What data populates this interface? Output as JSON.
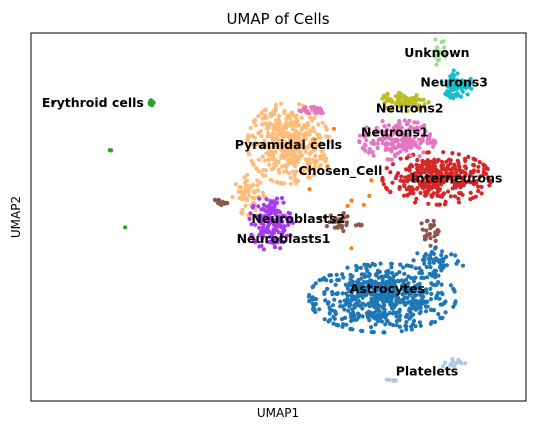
{
  "chart_data": {
    "type": "scatter",
    "title": "UMAP of Cells",
    "xlabel": "UMAP1",
    "ylabel": "UMAP2",
    "xlim": [
      0,
      100
    ],
    "ylim": [
      0,
      100
    ],
    "grid": false,
    "legend": "on data",
    "ticks": "hidden",
    "clusters": [
      {
        "name": "Astrocytes",
        "color": "#1f77b4",
        "label_at": [
          72,
          30.5
        ],
        "blobs": [
          {
            "center": [
              71,
              28
            ],
            "spread": [
              13.5,
              8.5
            ],
            "n": 620
          },
          {
            "center": [
              82,
              38
            ],
            "spread": [
              5,
              4
            ],
            "n": 60
          }
        ]
      },
      {
        "name": "Pyramidal cells",
        "color": "#ffbb78",
        "label_at": [
          52,
          69.5
        ],
        "blobs": [
          {
            "center": [
              52,
              70
            ],
            "spread": [
              7.5,
              10
            ],
            "n": 430
          },
          {
            "center": [
              44,
              56
            ],
            "spread": [
              3,
              5
            ],
            "n": 60
          }
        ]
      },
      {
        "name": "Interneurons",
        "color": "#d62728",
        "label_at": [
          86,
          60.5
        ],
        "blobs": [
          {
            "center": [
              82,
              60.5
            ],
            "spread": [
              10,
              6.5
            ],
            "n": 330
          }
        ]
      },
      {
        "name": "Neurons1",
        "color": "#e377c2",
        "label_at": [
          73.5,
          73
        ],
        "blobs": [
          {
            "center": [
              74,
              71
            ],
            "spread": [
              7,
              5
            ],
            "n": 190
          },
          {
            "center": [
              57,
              79
            ],
            "spread": [
              3,
              1.5
            ],
            "n": 25
          }
        ]
      },
      {
        "name": "Neurons2",
        "color": "#bcbd22",
        "label_at": [
          76.5,
          79.5
        ],
        "blobs": [
          {
            "center": [
              75.5,
              81.5
            ],
            "spread": [
              4.5,
              2.5
            ],
            "n": 90
          }
        ]
      },
      {
        "name": "Neurons3",
        "color": "#17becf",
        "label_at": [
          85.5,
          86.5
        ],
        "blobs": [
          {
            "center": [
              86,
              86
            ],
            "spread": [
              2.8,
              3.5
            ],
            "n": 80
          }
        ]
      },
      {
        "name": "Unknown",
        "color": "#98df8a",
        "label_at": [
          82,
          94.5
        ],
        "blobs": [
          {
            "center": [
              82.5,
              95
            ],
            "spread": [
              1.5,
              3.5
            ],
            "n": 15
          }
        ]
      },
      {
        "name": "Neuroblasts1",
        "color": "#a83bf2",
        "label_at": [
          51,
          44
        ],
        "blobs": [
          {
            "center": [
              48.5,
              48.5
            ],
            "spread": [
              4,
              7
            ],
            "n": 150
          }
        ]
      },
      {
        "name": "Neuroblasts2",
        "color": "#8c564b",
        "label_at": [
          54,
          49.5
        ],
        "blobs": [
          {
            "center": [
              62,
              48.5
            ],
            "spread": [
              4.5,
              2.5
            ],
            "n": 30
          },
          {
            "center": [
              80.5,
              46
            ],
            "spread": [
              1.8,
              3.5
            ],
            "n": 25
          },
          {
            "center": [
              38,
              54
            ],
            "spread": [
              1.6,
              0.7
            ],
            "n": 14
          }
        ]
      },
      {
        "name": "Chosen_Cell",
        "color": "#ff7f0e",
        "label_at": [
          62.5,
          62.5
        ],
        "blobs": [
          {
            "center": [
              64,
              58
            ],
            "spread": [
              10,
              15
            ],
            "n": 10
          }
        ]
      },
      {
        "name": "Erythroid cells",
        "color": "#2ca02c",
        "label_at": [
          12.5,
          81
        ],
        "blobs": [
          {
            "center": [
              24.5,
              81
            ],
            "spread": [
              0.5,
              0.8
            ],
            "n": 10
          },
          {
            "center": [
              16,
              68
            ],
            "spread": [
              0.3,
              0.3
            ],
            "n": 2
          },
          {
            "center": [
              19,
              47
            ],
            "spread": [
              0.2,
              0.2
            ],
            "n": 1
          },
          {
            "center": [
              4.5,
              81
            ],
            "spread": [
              0.2,
              0.2
            ],
            "n": 1
          }
        ]
      },
      {
        "name": "Platelets",
        "color": "#aec7e8",
        "label_at": [
          80,
          8
        ],
        "blobs": [
          {
            "center": [
              85,
              10.5
            ],
            "spread": [
              2.5,
              1.5
            ],
            "n": 14
          },
          {
            "center": [
              73,
              5.5
            ],
            "spread": [
              1.5,
              0.5
            ],
            "n": 6
          }
        ]
      }
    ]
  }
}
